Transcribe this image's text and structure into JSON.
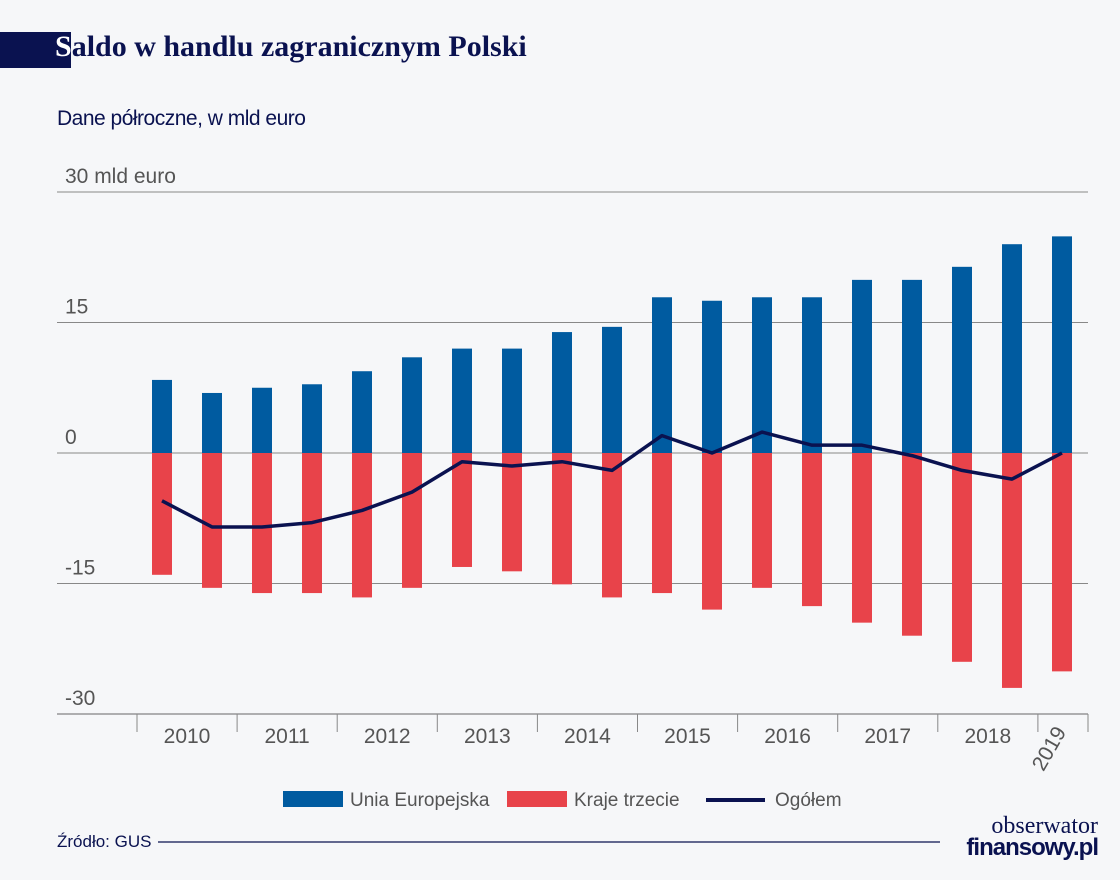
{
  "title": "Saldo w handlu zagranicznym Polski",
  "subtitle": "Dane półroczne, w mld euro",
  "source": "Źródło: GUS",
  "logo": {
    "line1": "obserwator",
    "line2": "finansowy.pl"
  },
  "colors": {
    "eu": "#005ba0",
    "third": "#e8434a",
    "total": "#0a1250"
  },
  "chart_data": {
    "type": "bar",
    "stacked": "diverging",
    "ylim": [
      -30,
      30
    ],
    "yticks": [
      {
        "v": 30,
        "label": "30 mld euro"
      },
      {
        "v": 15,
        "label": "15"
      },
      {
        "v": 0,
        "label": "0"
      },
      {
        "v": -15,
        "label": "-15"
      },
      {
        "v": -30,
        "label": "-30"
      }
    ],
    "grid": true,
    "legend_position": "bottom",
    "years": [
      "2010",
      "2011",
      "2012",
      "2013",
      "2014",
      "2015",
      "2016",
      "2017",
      "2018",
      "2019"
    ],
    "categories": [
      "2010 H1",
      "2010 H2",
      "2011 H1",
      "2011 H2",
      "2012 H1",
      "2012 H2",
      "2013 H1",
      "2013 H2",
      "2014 H1",
      "2014 H2",
      "2015 H1",
      "2015 H2",
      "2016 H1",
      "2016 H2",
      "2017 H1",
      "2017 H2",
      "2018 H1",
      "2018 H2",
      "2019 H1"
    ],
    "series": [
      {
        "name": "Unia Europejska",
        "type": "bar",
        "values": [
          8.4,
          6.9,
          7.5,
          7.9,
          9.4,
          11.0,
          12.0,
          12.0,
          13.9,
          14.5,
          17.9,
          17.5,
          17.9,
          17.9,
          19.9,
          19.9,
          21.4,
          24.0,
          24.9
        ]
      },
      {
        "name": "Kraje trzecie",
        "type": "bar",
        "values": [
          -14.0,
          -15.5,
          -16.1,
          -16.1,
          -16.6,
          -15.5,
          -13.1,
          -13.6,
          -15.1,
          -16.6,
          -16.1,
          -18.0,
          -15.5,
          -17.6,
          -19.5,
          -21.0,
          -24.0,
          -27.0,
          -25.1
        ]
      },
      {
        "name": "Ogółem",
        "type": "line",
        "values": [
          -5.5,
          -8.5,
          -8.5,
          -8.0,
          -6.6,
          -4.5,
          -1.0,
          -1.5,
          -1.0,
          -2.0,
          2.0,
          0.0,
          2.4,
          0.9,
          0.9,
          -0.3,
          -2.0,
          -3.0,
          0.0
        ]
      }
    ]
  }
}
